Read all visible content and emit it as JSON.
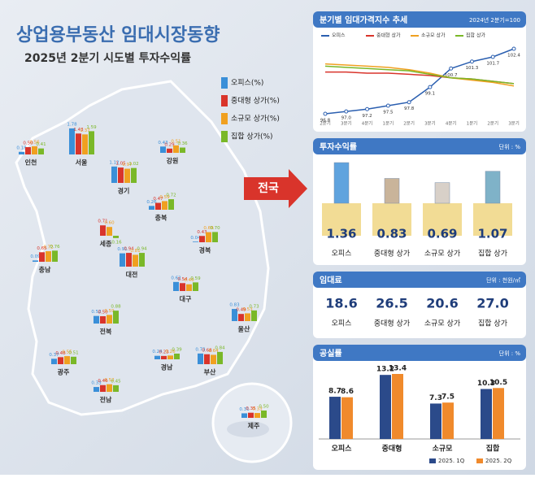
{
  "title": "상업용부동산 임대시장동향",
  "subtitle": "2025년 2분기 시도별 투자수익률",
  "legend": {
    "items": [
      {
        "label": "오피스(%)",
        "color": "#3a8fd8"
      },
      {
        "label": "중대형 상가(%)",
        "color": "#d9342b"
      },
      {
        "label": "소규모 상가(%)",
        "color": "#f0a020"
      },
      {
        "label": "집합 상가(%)",
        "color": "#7ab828"
      }
    ]
  },
  "nation_label": "전국",
  "map": {
    "regions": [
      {
        "name": "인천",
        "values": [
          0.18,
          0.5,
          0.56,
          0.41
        ],
        "value_labels": [
          "0.18",
          "0.50",
          "0.56",
          "0.41"
        ]
      },
      {
        "name": "서울",
        "values": [
          1.78,
          1.43,
          1.37,
          1.59
        ],
        "value_labels": [
          "1.78",
          "1.43",
          "1.37",
          "1.59"
        ]
      },
      {
        "name": "강원",
        "values": [
          0.43,
          0.29,
          0.51,
          0.36
        ],
        "value_labels": [
          "0.43",
          "0.29",
          "0.51",
          "0.36"
        ]
      },
      {
        "name": "경기",
        "values": [
          1.12,
          1.05,
          0.97,
          1.02
        ],
        "value_labels": [
          "1.12",
          "1.05",
          "0.97",
          "1.02"
        ]
      },
      {
        "name": "충북",
        "values": [
          0.26,
          0.47,
          0.59,
          0.72
        ],
        "value_labels": [
          "0.26",
          "0.47",
          "0.59",
          "0.72"
        ]
      },
      {
        "name": "세종",
        "values": [
          null,
          0.71,
          0.6,
          -0.16
        ],
        "value_labels": [
          null,
          "0.71",
          "0.60",
          "-0.16"
        ]
      },
      {
        "name": "경북",
        "values": [
          0.04,
          0.43,
          0.69,
          0.7
        ],
        "value_labels": [
          "0.04",
          "0.43",
          "0.69",
          "0.70"
        ]
      },
      {
        "name": "충남",
        "values": [
          0.09,
          0.65,
          0.72,
          0.76
        ],
        "value_labels": [
          "0.09",
          "0.65",
          "0.72",
          "0.76"
        ]
      },
      {
        "name": "대전",
        "values": [
          0.91,
          0.94,
          0.81,
          0.94
        ],
        "value_labels": [
          "0.91",
          "0.94",
          "0.81",
          "0.94"
        ]
      },
      {
        "name": "대구",
        "values": [
          0.62,
          0.54,
          0.46,
          0.59
        ],
        "value_labels": [
          "0.62",
          "0.54",
          "0.46",
          "0.59"
        ]
      },
      {
        "name": "울산",
        "values": [
          0.83,
          0.49,
          0.53,
          0.73
        ],
        "value_labels": [
          "0.83",
          "0.49",
          "0.53",
          "0.73"
        ]
      },
      {
        "name": "전북",
        "values": [
          0.52,
          0.5,
          0.59,
          0.88
        ],
        "value_labels": [
          "0.52",
          "0.50",
          "0.59",
          "0.88"
        ]
      },
      {
        "name": "경남",
        "values": [
          0.24,
          0.23,
          0.26,
          0.39
        ],
        "value_labels": [
          "0.24",
          "0.23",
          "0.26",
          "0.39"
        ]
      },
      {
        "name": "부산",
        "values": [
          0.73,
          0.68,
          0.64,
          0.84
        ],
        "value_labels": [
          "0.73",
          "0.68",
          "0.64",
          "0.84"
        ]
      },
      {
        "name": "광주",
        "values": [
          0.37,
          0.48,
          0.55,
          0.51
        ],
        "value_labels": [
          "0.37",
          "0.48",
          "0.55",
          "0.51"
        ]
      },
      {
        "name": "전남",
        "values": [
          0.33,
          0.46,
          0.52,
          0.45
        ],
        "value_labels": [
          "0.33",
          "0.46",
          "0.52",
          "0.45"
        ]
      },
      {
        "name": "제주",
        "values": [
          0.31,
          0.35,
          0.33,
          0.5
        ],
        "value_labels": [
          "0.31",
          "0.35",
          "0.33",
          "0.50"
        ]
      }
    ]
  },
  "price_index": {
    "title": "분기별 임대가격지수 추세",
    "note": "2024년 2분기=100",
    "categories": [
      "2분기",
      "3분기",
      "4분기",
      "1분기",
      "2분기",
      "3분기",
      "4분기",
      "1분기",
      "2분기",
      "3분기"
    ],
    "series": [
      {
        "name": "오피스",
        "color": "#2b5fb0",
        "values": [
          96.8,
          97.0,
          97.2,
          97.5,
          97.8,
          99.1,
          100.7,
          101.3,
          101.7,
          102.4
        ],
        "value_labels": [
          "96.8",
          "97.0",
          "97.2",
          "97.5",
          "97.8",
          "99.1",
          "100.7",
          "101.3",
          "101.7",
          "102.4"
        ]
      },
      {
        "name": "중대형 상가",
        "color": "#d9342b",
        "values": [
          100.4,
          100.4,
          100.3,
          100.3,
          100.2,
          100.1,
          99.9,
          99.8,
          99.6,
          99.4
        ]
      },
      {
        "name": "소규모 상가",
        "color": "#f0a020",
        "values": [
          101.1,
          101.0,
          100.9,
          100.8,
          100.6,
          100.3,
          99.9,
          99.7,
          99.5,
          99.2
        ]
      },
      {
        "name": "집합 상가",
        "color": "#7ab828",
        "values": [
          100.9,
          100.8,
          100.7,
          100.6,
          100.5,
          100.2,
          99.9,
          99.8,
          99.6,
          99.4
        ]
      }
    ]
  },
  "returns": {
    "title": "투자수익률",
    "unit": "단위 : %",
    "categories": [
      "오피스",
      "중대형 상가",
      "소규모 상가",
      "집합 상가"
    ],
    "values": [
      1.36,
      0.83,
      0.69,
      1.07
    ]
  },
  "rent": {
    "title": "임대료",
    "unit": "단위 : 천원/㎡",
    "categories": [
      "오피스",
      "중대형 상가",
      "소규모 상가",
      "집합 상가"
    ],
    "values": [
      18.6,
      26.5,
      20.6,
      27
    ],
    "value_labels": [
      "18.6",
      "26.5",
      "20.6",
      "27.0"
    ]
  },
  "vacancy": {
    "title": "공실률",
    "unit": "단위 : %",
    "categories": [
      "오피스",
      "중대형",
      "소규모",
      "집합"
    ],
    "series": [
      {
        "name": "2025. 1Q",
        "color": "#2b4a8a",
        "values": [
          8.7,
          13.2,
          7.3,
          10.3
        ]
      },
      {
        "name": "2025. 2Q",
        "color": "#f08a2c",
        "values": [
          8.6,
          13.4,
          7.5,
          10.5
        ]
      }
    ]
  }
}
